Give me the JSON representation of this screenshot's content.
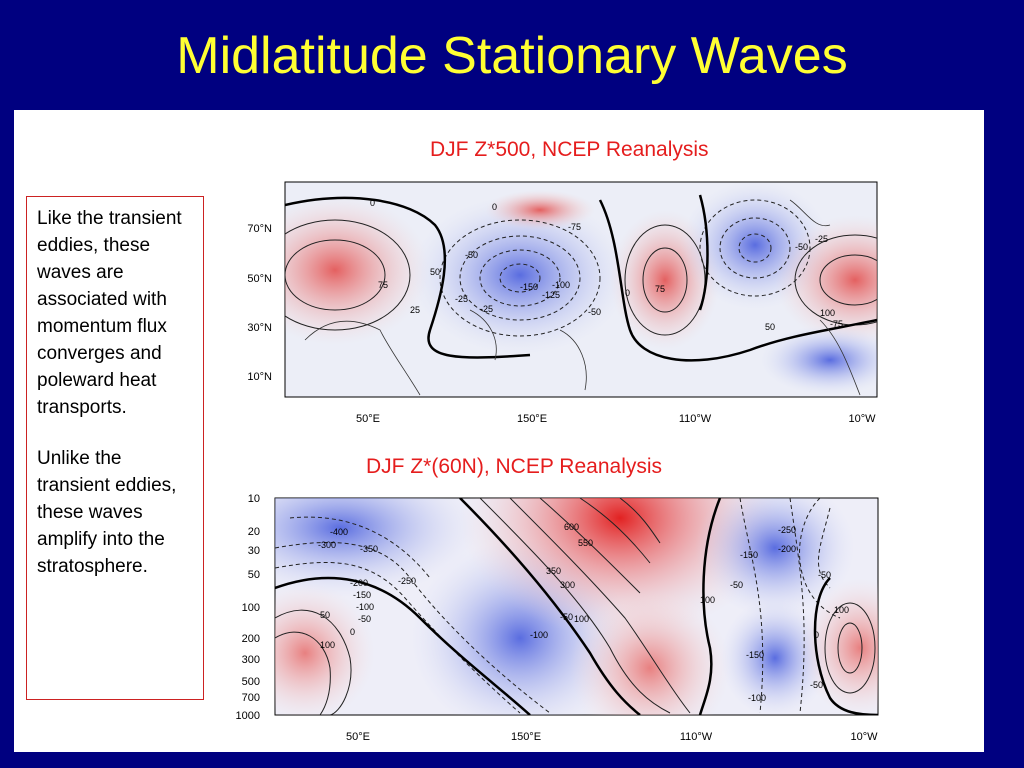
{
  "slide": {
    "title": "Midlatitude Stationary Waves",
    "note_p1": "Like the transient eddies, these waves are associated with momentum flux converges and poleward heat transports.",
    "note_p2": "Unlike the transient eddies, these waves amplify into the stratosphere."
  },
  "colors": {
    "background": "#000080",
    "title": "#ffff33",
    "caption": "#e51d1d",
    "positive": "#e23b3b",
    "negative": "#5a6de0"
  },
  "chart_data": [
    {
      "type": "heatmap",
      "title": "DJF Z*500, NCEP Reanalysis",
      "y_ticks": [
        "70°N",
        "50°N",
        "30°N",
        "10°N"
      ],
      "x_ticks": [
        "50°E",
        "150°E",
        "110°W",
        "10°W"
      ],
      "contour_labels": [
        "0",
        "25",
        "50",
        "75",
        "-25",
        "-50",
        "-75",
        "-100",
        "-125",
        "-150",
        "100",
        "-75",
        "0",
        "0",
        "-50",
        "-25",
        "-50",
        "-25",
        "50",
        "75"
      ],
      "anomalies": [
        {
          "lon": 55,
          "lat": 55,
          "value": 75
        },
        {
          "lon": 155,
          "lat": 48,
          "value": -150
        },
        {
          "lon": 235,
          "lat": 50,
          "value": 75
        },
        {
          "lon": 285,
          "lat": 65,
          "value": -100
        },
        {
          "lon": 345,
          "lat": 50,
          "value": 100
        }
      ]
    },
    {
      "type": "heatmap",
      "title": "DJF Z*(60N), NCEP Reanalysis",
      "y_ticks": [
        "10",
        "20",
        "30",
        "50",
        "100",
        "200",
        "300",
        "500",
        "700",
        "1000"
      ],
      "x_ticks": [
        "50°E",
        "150°E",
        "110°W",
        "10°W"
      ],
      "contour_labels": [
        "-400",
        "-300",
        "-350",
        "-250",
        "-200",
        "-150",
        "-100",
        "-50",
        "0",
        "50",
        "100",
        "-100",
        "600",
        "550",
        "350",
        "300",
        "-50",
        "100",
        "100",
        "-250",
        "-200",
        "-150",
        "-50",
        "-150",
        "0",
        "-100",
        "-50",
        "100",
        "-50"
      ]
    }
  ]
}
